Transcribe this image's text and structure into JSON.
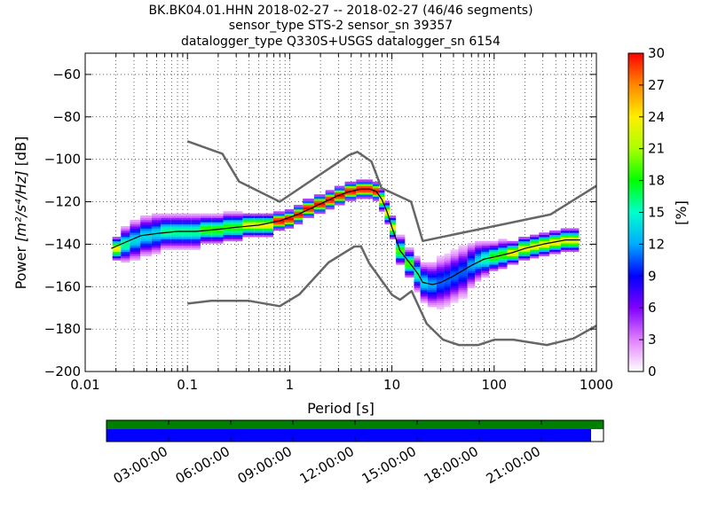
{
  "title": {
    "line1": "BK.BK04.01.HHN   2018-02-27 -- 2018-02-27  (46/46 segments)",
    "line2": "sensor_type STS-2 sensor_sn 39357",
    "line3": "datalogger_type Q330S+USGS datalogger_sn 6154"
  },
  "colors": {
    "noise_model": "#666666",
    "mode_line": "#000000",
    "data_coverage": "#008000",
    "gap_coverage": "#0000ff"
  },
  "chart_data": [
    {
      "type": "heatmap",
      "title": "",
      "xlabel": "Period [s]",
      "ylabel_prefix": "Power ",
      "ylabel_unit": "[m²/s⁴/Hz]",
      "ylabel_suffix": " [dB]",
      "xscale": "log",
      "xlim": [
        0.01,
        1000
      ],
      "ylim": [
        -200,
        -50
      ],
      "x_ticks": [
        0.01,
        0.1,
        1,
        10,
        100,
        1000
      ],
      "x_tick_labels": [
        "0.01",
        "0.1",
        "1",
        "10",
        "100",
        "1000"
      ],
      "y_ticks": [
        -200,
        -180,
        -160,
        -140,
        -120,
        -100,
        -80,
        -60
      ],
      "y_tick_labels": [
        "−200",
        "−180",
        "−160",
        "−140",
        "−120",
        "−100",
        "−80",
        "−60"
      ],
      "grid": true,
      "colorbar": {
        "label": "[%]",
        "range": [
          0,
          30
        ],
        "ticks": [
          0,
          3,
          6,
          9,
          12,
          15,
          18,
          21,
          24,
          27,
          30
        ],
        "tick_labels": [
          "0",
          "3",
          "6",
          "9",
          "12",
          "15",
          "18",
          "21",
          "24",
          "27",
          "30"
        ]
      },
      "mode_line": {
        "x": [
          0.018,
          0.025,
          0.035,
          0.05,
          0.08,
          0.12,
          0.2,
          0.3,
          0.5,
          0.8,
          1.2,
          2,
          3,
          4,
          5,
          6,
          7,
          8,
          9,
          10,
          12,
          15,
          18,
          20,
          25,
          30,
          40,
          60,
          80,
          100,
          150,
          200,
          300,
          500,
          700
        ],
        "y": [
          -142,
          -139,
          -136,
          -135,
          -134,
          -134,
          -133,
          -132,
          -131,
          -129,
          -126,
          -121,
          -117,
          -115,
          -114,
          -114,
          -115,
          -119,
          -125,
          -132,
          -143,
          -149,
          -154,
          -158,
          -159,
          -158,
          -155,
          -150,
          -147,
          -146,
          -144,
          -142,
          -140,
          -138,
          -138
        ]
      },
      "noise_models": [
        {
          "name": "high",
          "x": [
            0.1,
            0.22,
            0.32,
            0.8,
            3.8,
            4.6,
            6.3,
            7.9,
            15.4,
            20,
            354.8,
            1000
          ],
          "y": [
            -91.5,
            -97.4,
            -110.5,
            -120,
            -98,
            -96.5,
            -101,
            -113.5,
            -120,
            -138.5,
            -126,
            -112.5
          ]
        },
        {
          "name": "low",
          "x": [
            0.1,
            0.17,
            0.4,
            0.8,
            1.24,
            2.4,
            4.3,
            5,
            6,
            10,
            12,
            15.6,
            21.9,
            31.6,
            45,
            70,
            101,
            154,
            328,
            600,
            1000
          ],
          "y": [
            -168,
            -166.7,
            -166.7,
            -169.2,
            -163.7,
            -148.6,
            -141.1,
            -141.1,
            -149,
            -163.8,
            -166.2,
            -162.1,
            -177.5,
            -185,
            -187.5,
            -187.5,
            -185,
            -185,
            -187.5,
            -184.4,
            -178.4
          ]
        }
      ],
      "histogram": {
        "x": [
          0.02,
          0.025,
          0.03,
          0.04,
          0.05,
          0.06,
          0.08,
          0.1,
          0.12,
          0.15,
          0.2,
          0.25,
          0.3,
          0.4,
          0.5,
          0.6,
          0.8,
          1,
          1.2,
          1.5,
          2,
          2.5,
          3,
          4,
          5,
          6,
          7,
          8,
          9,
          10,
          12,
          15,
          18,
          20,
          25,
          30,
          35,
          40,
          50,
          60,
          70,
          80,
          100,
          120,
          150,
          200,
          250,
          300,
          400,
          500,
          600
        ],
        "center": [
          -142,
          -140,
          -138,
          -136,
          -135,
          -134,
          -134,
          -134,
          -134,
          -133,
          -133,
          -132,
          -132,
          -131,
          -131,
          -131,
          -129,
          -128,
          -126,
          -123,
          -121,
          -119,
          -117,
          -115,
          -114,
          -114,
          -115,
          -119,
          -125,
          -132,
          -143,
          -149,
          -154,
          -158,
          -159,
          -158,
          -157,
          -155,
          -153,
          -150,
          -148,
          -147,
          -146,
          -145,
          -144,
          -142,
          -141,
          -140,
          -139,
          -138,
          -138
        ],
        "spread": [
          4,
          6,
          7,
          7,
          7,
          6,
          6,
          6,
          6,
          5,
          5,
          5,
          5,
          4,
          4,
          4,
          3,
          3,
          3,
          3,
          3,
          3,
          3,
          3,
          3,
          3,
          3,
          4,
          4,
          4,
          5,
          5,
          6,
          7,
          8,
          9,
          9,
          9,
          9,
          8,
          7,
          6,
          5,
          5,
          4,
          4,
          4,
          4,
          4,
          4,
          4
        ]
      }
    },
    {
      "type": "bar",
      "title": "",
      "x_tick_labels": [
        "03:00:00",
        "06:00:00",
        "09:00:00",
        "12:00:00",
        "15:00:00",
        "18:00:00",
        "21:00:00"
      ],
      "x_tick_hours": [
        3,
        6,
        9,
        12,
        15,
        18,
        21
      ],
      "x_range_hours": [
        0,
        24
      ],
      "data_coverage_fraction": 1.0,
      "gap_coverage_fraction": 0.975
    }
  ]
}
